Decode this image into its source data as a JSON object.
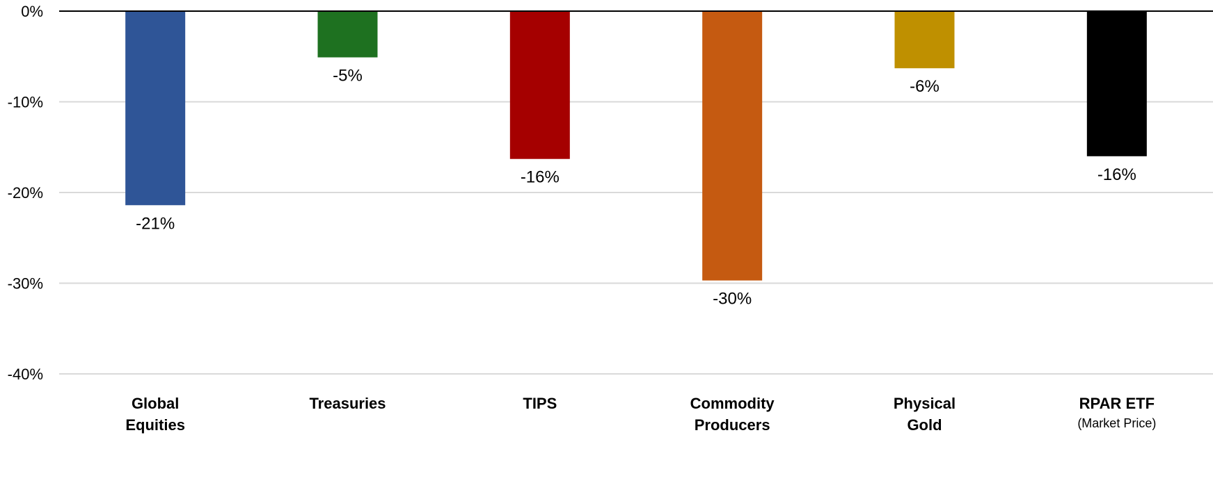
{
  "chart_data": {
    "type": "bar",
    "title": "",
    "xlabel": "",
    "ylabel": "",
    "ylim": [
      -40,
      0
    ],
    "yticks": [
      "0%",
      "-10%",
      "-20%",
      "-30%",
      "-40%"
    ],
    "ytick_values": [
      0,
      -10,
      -20,
      -30,
      -40
    ],
    "grid": true,
    "legend": "none",
    "categories": [
      {
        "name": "Global Equities",
        "lines": [
          "Global",
          "Equities"
        ],
        "sub": ""
      },
      {
        "name": "Treasuries",
        "lines": [
          "Treasuries"
        ],
        "sub": ""
      },
      {
        "name": "TIPS",
        "lines": [
          "TIPS"
        ],
        "sub": ""
      },
      {
        "name": "Commodity Producers",
        "lines": [
          "Commodity",
          "Producers"
        ],
        "sub": ""
      },
      {
        "name": "Physical Gold",
        "lines": [
          "Physical",
          "Gold"
        ],
        "sub": ""
      },
      {
        "name": "RPAR ETF (Market Price)",
        "lines": [
          "RPAR ETF"
        ],
        "sub": "(Market Price)"
      }
    ],
    "values": [
      -21.4,
      -5.1,
      -16.3,
      -29.7,
      -6.3,
      -16.0
    ],
    "data_labels": [
      "-21%",
      "-5%",
      "-16%",
      "-30%",
      "-6%",
      "-16%"
    ],
    "colors": [
      "#2f5597",
      "#1e7120",
      "#a50000",
      "#c55a11",
      "#bf9000",
      "#000000"
    ]
  }
}
